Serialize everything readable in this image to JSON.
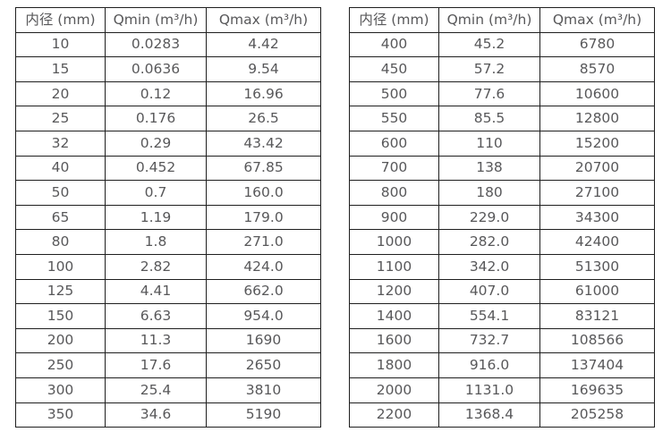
{
  "page": {
    "background": "#ffffff",
    "border_color": "#1f1f1f",
    "text_color": "#58585a"
  },
  "tables": [
    {
      "name": "flow-range-table-dn10-350",
      "headers": [
        "内径 (mm)",
        "Qmin (m³/h)",
        "Qmax (m³/h)"
      ],
      "rows": [
        [
          "10",
          "0.0283",
          "4.42"
        ],
        [
          "15",
          "0.0636",
          "9.54"
        ],
        [
          "20",
          "0.12",
          "16.96"
        ],
        [
          "25",
          "0.176",
          "26.5"
        ],
        [
          "32",
          "0.29",
          "43.42"
        ],
        [
          "40",
          "0.452",
          "67.85"
        ],
        [
          "50",
          "0.7",
          "160.0"
        ],
        [
          "65",
          "1.19",
          "179.0"
        ],
        [
          "80",
          "1.8",
          "271.0"
        ],
        [
          "100",
          "2.82",
          "424.0"
        ],
        [
          "125",
          "4.41",
          "662.0"
        ],
        [
          "150",
          "6.63",
          "954.0"
        ],
        [
          "200",
          "11.3",
          "1690"
        ],
        [
          "250",
          "17.6",
          "2650"
        ],
        [
          "300",
          "25.4",
          "3810"
        ],
        [
          "350",
          "34.6",
          "5190"
        ]
      ]
    },
    {
      "name": "flow-range-table-dn400-2200",
      "headers": [
        "内径 (mm)",
        "Qmin (m³/h)",
        "Qmax (m³/h)"
      ],
      "rows": [
        [
          "400",
          "45.2",
          "6780"
        ],
        [
          "450",
          "57.2",
          "8570"
        ],
        [
          "500",
          "77.6",
          "10600"
        ],
        [
          "550",
          "85.5",
          "12800"
        ],
        [
          "600",
          "110",
          "15200"
        ],
        [
          "700",
          "138",
          "20700"
        ],
        [
          "800",
          "180",
          "27100"
        ],
        [
          "900",
          "229.0",
          "34300"
        ],
        [
          "1000",
          "282.0",
          "42400"
        ],
        [
          "1100",
          "342.0",
          "51300"
        ],
        [
          "1200",
          "407.0",
          "61000"
        ],
        [
          "1400",
          "554.1",
          "83121"
        ],
        [
          "1600",
          "732.7",
          "108566"
        ],
        [
          "1800",
          "916.0",
          "137404"
        ],
        [
          "2000",
          "1131.0",
          "169635"
        ],
        [
          "2200",
          "1368.4",
          "205258"
        ]
      ]
    }
  ]
}
